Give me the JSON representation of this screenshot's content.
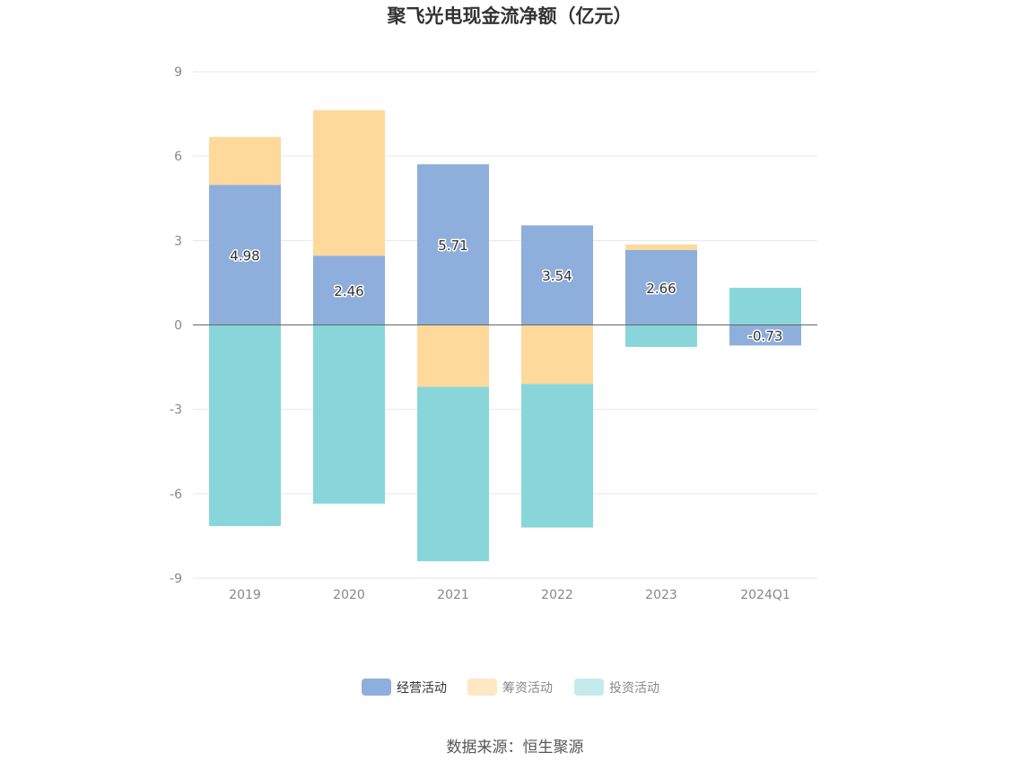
{
  "chart_data": {
    "type": "bar",
    "stacked": true,
    "title": "聚飞光电现金流净额（亿元）",
    "categories": [
      "2019",
      "2020",
      "2021",
      "2022",
      "2023",
      "2024Q1"
    ],
    "ylim": [
      -9,
      9
    ],
    "yticks": [
      9,
      6,
      3,
      0,
      -3,
      -6,
      -9
    ],
    "grid": true,
    "legend_position": "bottom",
    "series": [
      {
        "name": "经营活动",
        "color": "#8eaedb",
        "values": [
          4.98,
          2.46,
          5.71,
          3.54,
          2.66,
          -0.73
        ],
        "labels": [
          "4.98",
          "2.46",
          "5.71",
          "3.54",
          "2.66",
          "-0.73"
        ]
      },
      {
        "name": "筹资活动",
        "color": "#fed99b",
        "values": [
          1.7,
          5.17,
          -2.2,
          -2.1,
          0.2,
          0
        ]
      },
      {
        "name": "投资活动",
        "color": "#89d6da",
        "values": [
          -7.15,
          -6.35,
          -6.2,
          -5.1,
          -0.78,
          1.32
        ]
      }
    ],
    "legend_colors": [
      "#8eaedb",
      "#fee7c3",
      "#c4eaec"
    ],
    "source": "数据来源：恒生聚源"
  }
}
